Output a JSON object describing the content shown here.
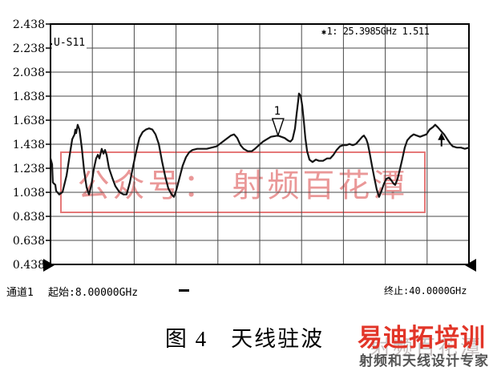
{
  "chart_data": {
    "type": "line",
    "title": "天线驻波",
    "legend": "U-S11",
    "x_unit": "GHz",
    "x_range": [
      8.0,
      40.0
    ],
    "y_range": [
      0.438,
      2.438
    ],
    "y_ticks": [
      "2.438",
      "2.238",
      "2.038",
      "1.838",
      "1.638",
      "1.438",
      "1.238",
      "1.038",
      "0.838",
      "0.638",
      "0.438"
    ],
    "grid_divisions": [
      10,
      10
    ],
    "grid": true,
    "series": [
      {
        "name": "U-S11",
        "points": [
          [
            8.0,
            1.32
          ],
          [
            8.12,
            1.27
          ],
          [
            8.18,
            1.12
          ],
          [
            8.37,
            1.1
          ],
          [
            8.43,
            1.05
          ],
          [
            8.67,
            1.02
          ],
          [
            8.92,
            1.04
          ],
          [
            9.23,
            1.18
          ],
          [
            9.47,
            1.35
          ],
          [
            9.66,
            1.48
          ],
          [
            9.84,
            1.52
          ],
          [
            9.9,
            1.56
          ],
          [
            9.96,
            1.53
          ],
          [
            10.08,
            1.6
          ],
          [
            10.21,
            1.56
          ],
          [
            10.39,
            1.41
          ],
          [
            10.57,
            1.22
          ],
          [
            10.76,
            1.08
          ],
          [
            10.94,
            1.02
          ],
          [
            11.13,
            1.1
          ],
          [
            11.31,
            1.23
          ],
          [
            11.49,
            1.32
          ],
          [
            11.62,
            1.35
          ],
          [
            11.74,
            1.32
          ],
          [
            11.92,
            1.4
          ],
          [
            12.05,
            1.36
          ],
          [
            12.17,
            1.39
          ],
          [
            12.29,
            1.35
          ],
          [
            12.47,
            1.24
          ],
          [
            12.72,
            1.16
          ],
          [
            12.96,
            1.09
          ],
          [
            13.27,
            1.04
          ],
          [
            13.58,
            1.02
          ],
          [
            13.82,
            1.02
          ],
          [
            14.07,
            1.12
          ],
          [
            14.31,
            1.25
          ],
          [
            14.56,
            1.38
          ],
          [
            14.8,
            1.49
          ],
          [
            15.05,
            1.54
          ],
          [
            15.29,
            1.56
          ],
          [
            15.54,
            1.57
          ],
          [
            15.79,
            1.56
          ],
          [
            16.03,
            1.52
          ],
          [
            16.28,
            1.44
          ],
          [
            16.52,
            1.3
          ],
          [
            16.77,
            1.17
          ],
          [
            17.01,
            1.07
          ],
          [
            17.26,
            1.02
          ],
          [
            17.44,
            1.0
          ],
          [
            17.63,
            1.06
          ],
          [
            17.87,
            1.16
          ],
          [
            18.11,
            1.26
          ],
          [
            18.36,
            1.33
          ],
          [
            18.6,
            1.37
          ],
          [
            18.85,
            1.39
          ],
          [
            19.22,
            1.4
          ],
          [
            19.59,
            1.4
          ],
          [
            19.95,
            1.4
          ],
          [
            20.32,
            1.41
          ],
          [
            20.69,
            1.42
          ],
          [
            21.06,
            1.45
          ],
          [
            21.42,
            1.48
          ],
          [
            21.79,
            1.51
          ],
          [
            22.04,
            1.52
          ],
          [
            22.28,
            1.49
          ],
          [
            22.53,
            1.43
          ],
          [
            22.77,
            1.4
          ],
          [
            23.08,
            1.38
          ],
          [
            23.39,
            1.38
          ],
          [
            23.63,
            1.4
          ],
          [
            23.94,
            1.43
          ],
          [
            24.25,
            1.46
          ],
          [
            24.55,
            1.48
          ],
          [
            24.86,
            1.5
          ],
          [
            25.4,
            1.51
          ],
          [
            25.64,
            1.5
          ],
          [
            25.9,
            1.49
          ],
          [
            26.15,
            1.47
          ],
          [
            26.35,
            1.46
          ],
          [
            26.51,
            1.48
          ],
          [
            26.7,
            1.57
          ],
          [
            26.82,
            1.69
          ],
          [
            26.94,
            1.8
          ],
          [
            27.0,
            1.86
          ],
          [
            27.13,
            1.84
          ],
          [
            27.25,
            1.76
          ],
          [
            27.37,
            1.63
          ],
          [
            27.49,
            1.49
          ],
          [
            27.62,
            1.38
          ],
          [
            27.8,
            1.31
          ],
          [
            28.04,
            1.29
          ],
          [
            28.29,
            1.31
          ],
          [
            28.53,
            1.3
          ],
          [
            28.84,
            1.3
          ],
          [
            29.15,
            1.32
          ],
          [
            29.39,
            1.32
          ],
          [
            29.64,
            1.35
          ],
          [
            29.88,
            1.39
          ],
          [
            30.13,
            1.42
          ],
          [
            30.37,
            1.43
          ],
          [
            30.62,
            1.43
          ],
          [
            30.86,
            1.44
          ],
          [
            31.11,
            1.43
          ],
          [
            31.35,
            1.44
          ],
          [
            31.6,
            1.47
          ],
          [
            31.84,
            1.5
          ],
          [
            31.97,
            1.51
          ],
          [
            32.15,
            1.48
          ],
          [
            32.27,
            1.44
          ],
          [
            32.4,
            1.37
          ],
          [
            32.58,
            1.26
          ],
          [
            32.76,
            1.16
          ],
          [
            32.95,
            1.06
          ],
          [
            33.13,
            1.0
          ],
          [
            33.31,
            1.05
          ],
          [
            33.5,
            1.11
          ],
          [
            33.68,
            1.15
          ],
          [
            33.87,
            1.16
          ],
          [
            34.05,
            1.14
          ],
          [
            34.23,
            1.11
          ],
          [
            34.36,
            1.1
          ],
          [
            34.54,
            1.15
          ],
          [
            34.72,
            1.23
          ],
          [
            34.91,
            1.32
          ],
          [
            35.09,
            1.41
          ],
          [
            35.28,
            1.47
          ],
          [
            35.52,
            1.5
          ],
          [
            35.77,
            1.52
          ],
          [
            36.01,
            1.51
          ],
          [
            36.26,
            1.5
          ],
          [
            36.5,
            1.51
          ],
          [
            36.75,
            1.52
          ],
          [
            36.99,
            1.56
          ],
          [
            37.24,
            1.58
          ],
          [
            37.42,
            1.6
          ],
          [
            37.61,
            1.58
          ],
          [
            37.85,
            1.55
          ],
          [
            38.1,
            1.52
          ],
          [
            38.34,
            1.48
          ],
          [
            38.59,
            1.44
          ],
          [
            38.77,
            1.42
          ],
          [
            39.08,
            1.41
          ],
          [
            39.39,
            1.41
          ],
          [
            39.69,
            1.4
          ],
          [
            40.0,
            1.41
          ]
        ]
      }
    ],
    "marker": {
      "id": "1",
      "freq_ghz": 25.3985,
      "value": 1.511
    },
    "arrow": {
      "freq_ghz": 37.9,
      "from_value": 1.42,
      "to_value": 1.52
    }
  },
  "overlay": {
    "trace_label": "U-S11",
    "readout_star": "✱",
    "readout_text": "1: 25.3985GHz 1.511"
  },
  "statusbar": {
    "channel": "通道1",
    "start": "起始:8.00000GHz",
    "stop": "终止:40.0000GHz"
  },
  "caption": "图 4　天线驻波",
  "watermarks": {
    "center_text": "公众号： 射频百花潭",
    "corner_gray": "射频百花潭",
    "corner_brand": "易迪拓培训",
    "corner_tagline": "射频和天线设计专家"
  },
  "colors": {
    "grid": "#4a4a4a",
    "border": "#000000",
    "trace": "#141414",
    "brand_red": "#e23528",
    "tagline_gray": "#545454"
  }
}
